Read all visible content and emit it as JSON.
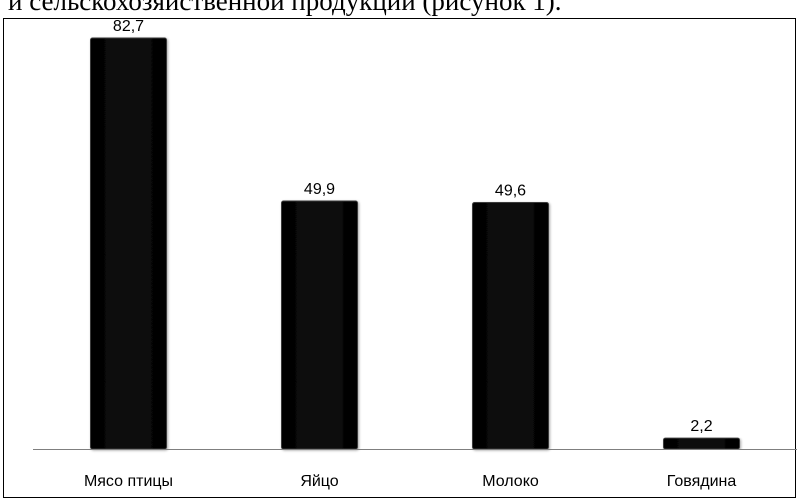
{
  "document": {
    "cut_off_text": "и сельскохозяйственной продукции (рисунок 1)."
  },
  "chart_data": {
    "type": "bar",
    "categories": [
      "Мясо птицы",
      "Яйцо",
      "Молоко",
      "Говядина"
    ],
    "values": [
      82.7,
      49.9,
      49.6,
      2.2
    ],
    "value_labels": [
      "82,7",
      "49,9",
      "49,6",
      "2,2"
    ],
    "title": "",
    "xlabel": "",
    "ylabel": "",
    "ylim": [
      0,
      82.7
    ],
    "grid": false,
    "legend": "none",
    "colors": {
      "bar_fill": "#000000",
      "bar_highlight": "#3a3a3a",
      "axis": "#7f7f7f",
      "text": "#000000"
    }
  }
}
